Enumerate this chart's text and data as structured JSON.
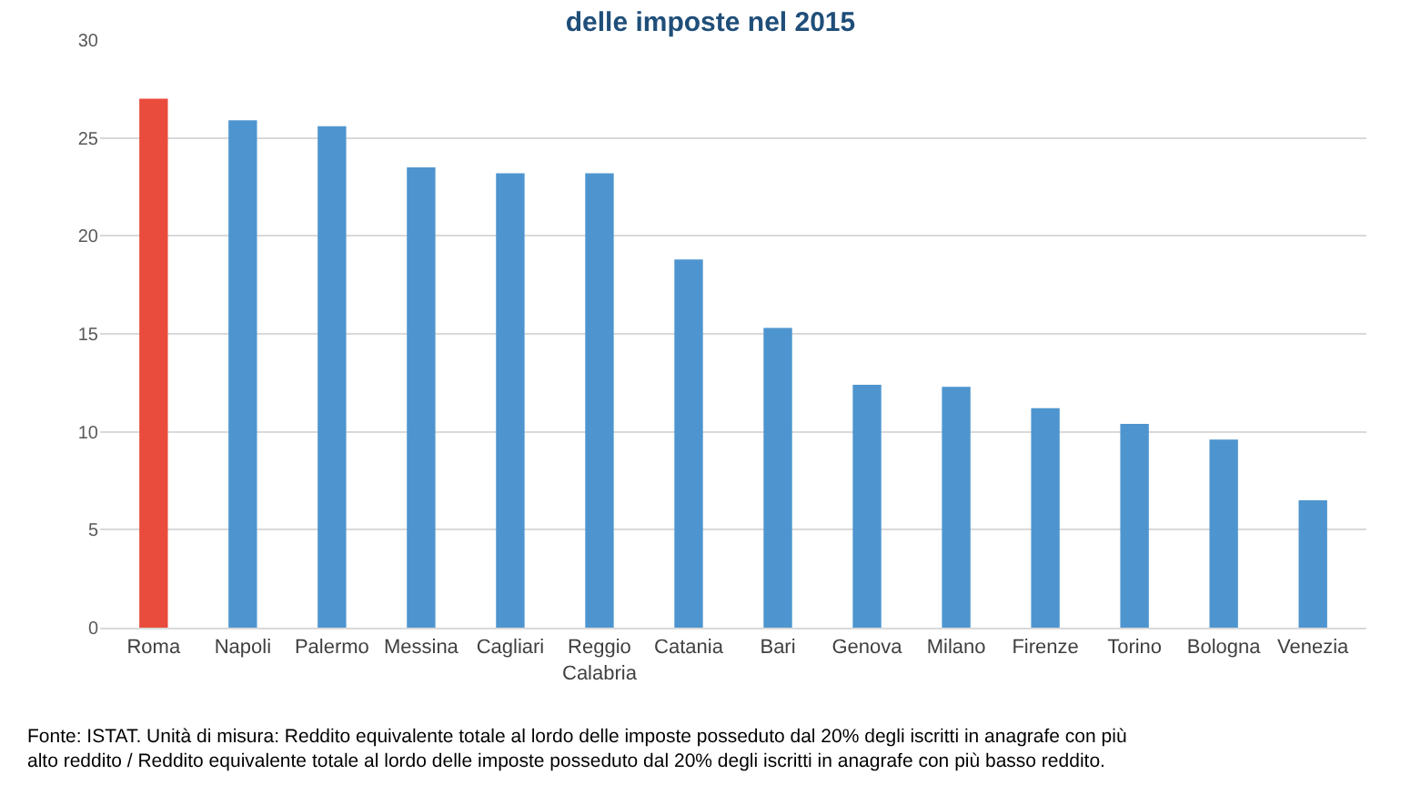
{
  "chart_data": {
    "type": "bar",
    "title": "delle imposte nel 2015",
    "categories": [
      "Roma",
      "Napoli",
      "Palermo",
      "Messina",
      "Cagliari",
      "Reggio Calabria",
      "Catania",
      "Bari",
      "Genova",
      "Milano",
      "Firenze",
      "Torino",
      "Bologna",
      "Venezia"
    ],
    "values": [
      27.0,
      25.9,
      25.6,
      23.5,
      23.2,
      23.2,
      18.8,
      15.3,
      12.4,
      12.3,
      11.2,
      10.4,
      9.6,
      6.5
    ],
    "colors": [
      "#e94b3c",
      "#4e95cf",
      "#4e95cf",
      "#4e95cf",
      "#4e95cf",
      "#4e95cf",
      "#4e95cf",
      "#4e95cf",
      "#4e95cf",
      "#4e95cf",
      "#4e95cf",
      "#4e95cf",
      "#4e95cf",
      "#4e95cf"
    ],
    "ylim": [
      0,
      30
    ],
    "yticks": [
      0,
      5,
      10,
      15,
      20,
      25,
      30
    ],
    "grid": "y",
    "legend": false,
    "annotations": [
      "Fonte: ISTAT. Unità di misura: Reddito equivalente totale al lordo delle imposte posseduto dal 20% degli iscritti in anagrafe con più alto reddito / Reddito equivalente totale al lordo delle imposte posseduto dal 20% degli iscritti in anagrafe con più basso reddito."
    ]
  }
}
